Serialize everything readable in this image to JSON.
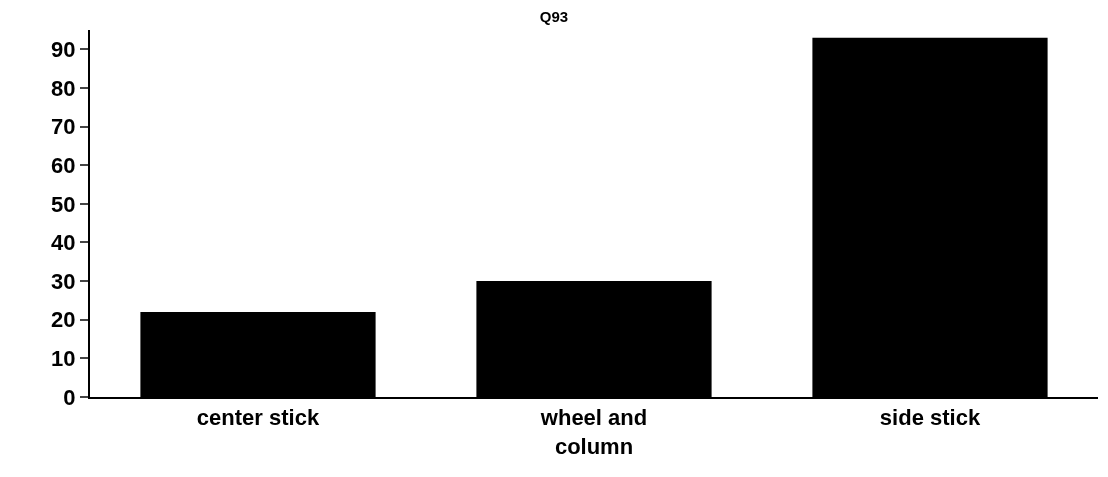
{
  "chart_data": {
    "type": "bar",
    "title": "Q93",
    "categories": [
      "center stick",
      "wheel and\ncolumn",
      "side stick"
    ],
    "values": [
      22,
      30,
      93
    ],
    "color": "#000000",
    "ylim": [
      0,
      95
    ],
    "yticks": [
      0,
      10,
      20,
      30,
      40,
      50,
      60,
      70,
      80,
      90
    ],
    "grid": false
  }
}
